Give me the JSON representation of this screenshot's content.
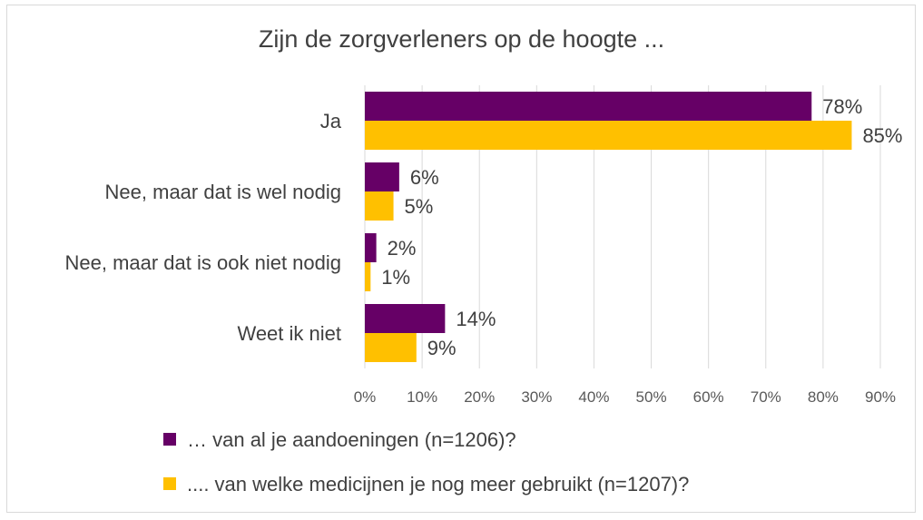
{
  "chart_data": {
    "type": "bar",
    "orientation": "horizontal",
    "title": "Zijn de zorgverleners op de hoogte ...",
    "categories": [
      "Ja",
      "Nee, maar dat is wel nodig",
      "Nee, maar dat is ook niet nodig",
      "Weet ik niet"
    ],
    "series": [
      {
        "name": "… van al je aandoeningen (n=1206)?",
        "color": "#660066",
        "values": [
          78,
          6,
          2,
          14
        ],
        "labels": [
          "78%",
          "6%",
          "2%",
          "14%"
        ]
      },
      {
        "name": ".... van welke medicijnen je nog meer gebruikt (n=1207)?",
        "color": "#ffc000",
        "values": [
          85,
          5,
          1,
          9
        ],
        "labels": [
          "85%",
          "5%",
          "1%",
          "9%"
        ]
      }
    ],
    "xlim": [
      0,
      90
    ],
    "xticks": [
      "0%",
      "10%",
      "20%",
      "30%",
      "40%",
      "50%",
      "60%",
      "70%",
      "80%",
      "90%"
    ],
    "grid": true,
    "legend_position": "bottom"
  }
}
